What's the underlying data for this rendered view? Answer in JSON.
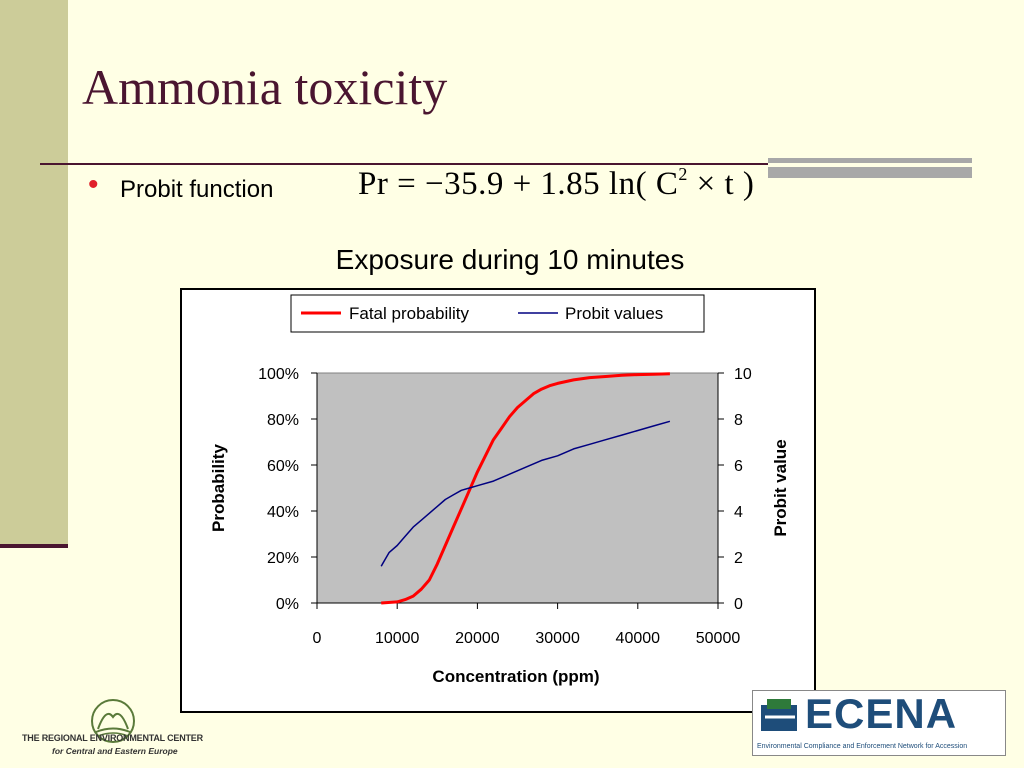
{
  "slide": {
    "title": "Ammonia toxicity",
    "bullet_label": "Probit function",
    "formula_left": "Pr = −35.9 + 1.85 ln( C",
    "formula_exp": "2",
    "formula_right": " × t )",
    "chart_caption": "Exposure during 10 minutes"
  },
  "colors": {
    "background": "#FFFFE5",
    "band": "#CCCC99",
    "title": "#4A1530",
    "bullet": "#E0202A",
    "fatal": "#FF0000",
    "probit": "#000080",
    "plot_area": "#C0C0C0"
  },
  "chart_data": {
    "type": "line",
    "title": "",
    "xlabel": "Concentration (ppm)",
    "ylabel": "Probability",
    "y2label": "Probit value",
    "xlim": [
      0,
      50000
    ],
    "ylim": [
      0,
      1
    ],
    "y2lim": [
      0,
      10
    ],
    "x_ticks": [
      "0",
      "10000",
      "20000",
      "30000",
      "40000",
      "50000"
    ],
    "y_ticks": [
      "0%",
      "20%",
      "40%",
      "60%",
      "80%",
      "100%"
    ],
    "y2_ticks": [
      "0",
      "2",
      "4",
      "6",
      "8",
      "10"
    ],
    "legend_position": "top",
    "grid": false,
    "series": [
      {
        "name": "Fatal probability",
        "axis": "left",
        "color": "#FF0000",
        "x": [
          8000,
          10000,
          11000,
          12000,
          13000,
          14000,
          15000,
          16000,
          17000,
          18000,
          19000,
          20000,
          21000,
          22000,
          23000,
          24000,
          25000,
          26000,
          27000,
          28000,
          29000,
          30000,
          32000,
          34000,
          36000,
          38000,
          40000,
          42000,
          44000
        ],
        "values": [
          0.0,
          0.005,
          0.015,
          0.03,
          0.06,
          0.1,
          0.17,
          0.25,
          0.33,
          0.41,
          0.49,
          0.57,
          0.64,
          0.71,
          0.76,
          0.81,
          0.85,
          0.88,
          0.91,
          0.93,
          0.945,
          0.955,
          0.97,
          0.98,
          0.985,
          0.99,
          0.993,
          0.995,
          0.997
        ]
      },
      {
        "name": "Probit values",
        "axis": "right",
        "color": "#000080",
        "x": [
          8000,
          8500,
          9000,
          10000,
          11000,
          12000,
          13000,
          14000,
          15000,
          16000,
          17000,
          18000,
          19000,
          20000,
          22000,
          24000,
          26000,
          28000,
          30000,
          32000,
          34000,
          36000,
          38000,
          40000,
          42000,
          44000
        ],
        "values": [
          1.6,
          1.9,
          2.2,
          2.5,
          2.9,
          3.3,
          3.6,
          3.9,
          4.2,
          4.5,
          4.7,
          4.9,
          5.0,
          5.1,
          5.3,
          5.6,
          5.9,
          6.2,
          6.4,
          6.7,
          6.9,
          7.1,
          7.3,
          7.5,
          7.7,
          7.9
        ]
      }
    ]
  },
  "logos": {
    "rec_name": "THE REGIONAL ENVIRONMENTAL CENTER",
    "rec_sub": "for Central and Eastern Europe",
    "ecena_word": "ECENA",
    "ecena_tag": "Environmental Compliance and Enforcement Network for Accession"
  }
}
